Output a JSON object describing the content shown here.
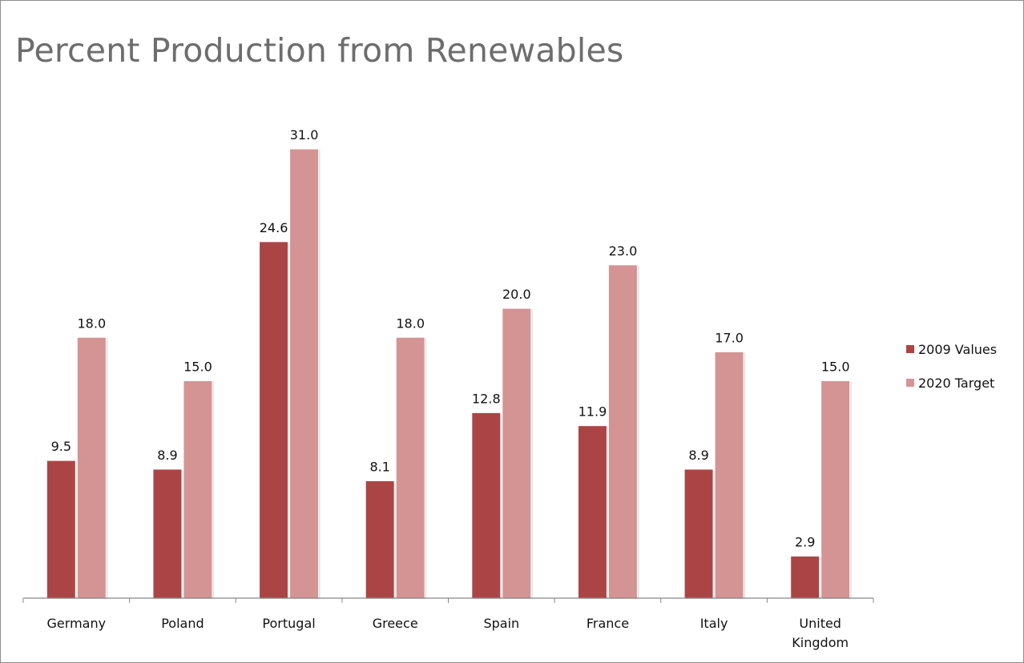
{
  "chart_data": {
    "type": "bar",
    "title": "Percent Production from Renewables",
    "categories": [
      [
        "Germany"
      ],
      [
        "Poland"
      ],
      [
        "Portugal"
      ],
      [
        "Greece"
      ],
      [
        "Spain"
      ],
      [
        "France"
      ],
      [
        "Italy"
      ],
      [
        "United",
        "Kingdom"
      ]
    ],
    "series": [
      {
        "name": "2009 Values",
        "color": "#ab4545",
        "values": [
          9.5,
          8.9,
          24.6,
          8.1,
          12.8,
          11.9,
          8.9,
          2.9
        ],
        "labels": [
          "9.5",
          "8.9",
          "24.6",
          "8.1",
          "12.8",
          "11.9",
          "8.9",
          "2.9"
        ]
      },
      {
        "name": "2020 Target",
        "color": "#d49494",
        "values": [
          18.0,
          15.0,
          31.0,
          18.0,
          20.0,
          23.0,
          17.0,
          15.0
        ],
        "labels": [
          "18.0",
          "15.0",
          "31.0",
          "18.0",
          "20.0",
          "23.0",
          "17.0",
          "15.0"
        ]
      }
    ],
    "xlabel": "",
    "ylabel": "",
    "ylim": [
      0,
      31
    ],
    "grid": false,
    "legend": "right",
    "data_labels": true
  }
}
